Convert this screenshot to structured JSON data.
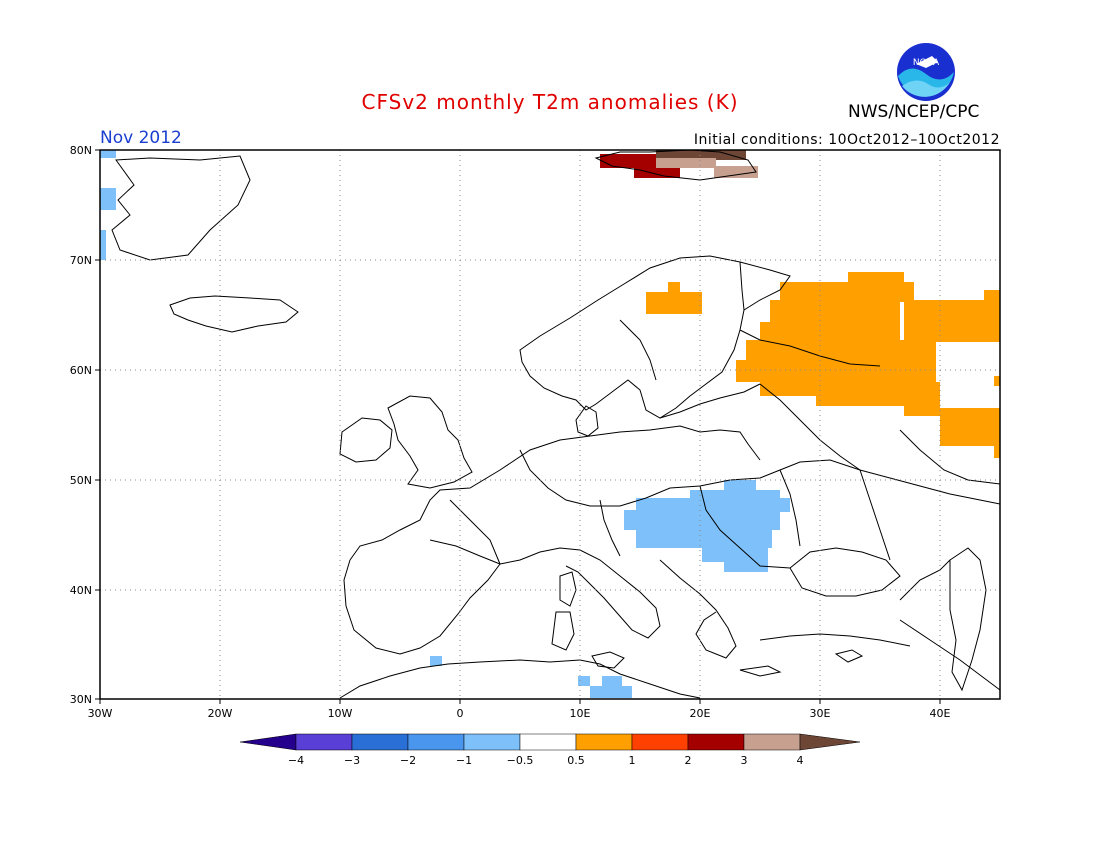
{
  "header": {
    "title": "CFSv2 monthly T2m anomalies (K)",
    "agency": "NWS/NCEP/CPC",
    "month": "Nov 2012",
    "initial_conditions": "Initial conditions: 10Oct2012–10Oct2012",
    "logo_text": "NOAA"
  },
  "map": {
    "lon_range": [
      -30,
      45
    ],
    "lat_range": [
      30,
      80
    ],
    "lon_ticks": [
      "30W",
      "20W",
      "10W",
      "0",
      "10E",
      "20E",
      "30E",
      "40E"
    ],
    "lat_ticks": [
      "30N",
      "40N",
      "50N",
      "60N",
      "70N",
      "80N"
    ],
    "grid": "dotted"
  },
  "colorbar": {
    "labels": [
      "−4",
      "−3",
      "−2",
      "−1",
      "−0.5",
      "0.5",
      "1",
      "2",
      "3",
      "4"
    ],
    "colors": [
      "#24008c",
      "#5a3fd6",
      "#2a6fd6",
      "#4a96ee",
      "#7ec1fa",
      "#ffffff",
      "#ffa000",
      "#ff4000",
      "#a50000",
      "#c8a090",
      "#6e4636"
    ]
  }
}
